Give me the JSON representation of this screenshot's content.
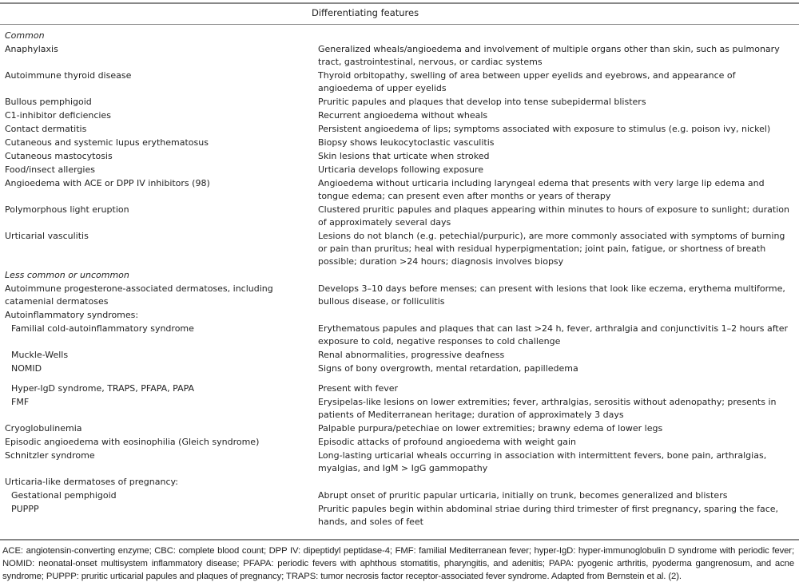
{
  "header": {
    "col2": "Differentiating features"
  },
  "rows": [
    {
      "type": "section",
      "label": "Common",
      "feature": ""
    },
    {
      "type": "item",
      "label": "Anaphylaxis",
      "feature": "Generalized wheals/angioedema and involvement of multiple organs other than skin, such as pulmonary tract, gastrointestinal, nervous, or cardiac systems"
    },
    {
      "type": "item",
      "label": "Autoimmune thyroid disease",
      "feature": "Thyroid orbitopathy, swelling of area between upper eyelids and eyebrows, and appearance of angioedema of upper eyelids"
    },
    {
      "type": "item",
      "label": "Bullous pemphigoid",
      "feature": "Pruritic papules and plaques that develop into tense subepidermal blisters"
    },
    {
      "type": "item",
      "label": "C1-inhibitor deficiencies",
      "feature": "Recurrent angioedema without wheals"
    },
    {
      "type": "item",
      "label": "Contact dermatitis",
      "feature": "Persistent angioedema of lips; symptoms associated with exposure to stimulus (e.g. poison ivy, nickel)"
    },
    {
      "type": "item",
      "label": "Cutaneous and systemic lupus erythematosus",
      "feature": "Biopsy shows leukocytoclastic vasculitis"
    },
    {
      "type": "item",
      "label": "Cutaneous mastocytosis",
      "feature": "Skin lesions that urticate when stroked"
    },
    {
      "type": "item",
      "label": "Food/insect allergies",
      "feature": "Urticaria develops following exposure"
    },
    {
      "type": "item",
      "label": "Angioedema with ACE or DPP IV inhibitors (98)",
      "feature": "Angioedema without urticaria including laryngeal edema that presents with very large lip edema and tongue edema; can present even after months or years of therapy"
    },
    {
      "type": "item",
      "label": "Polymorphous light eruption",
      "feature": "Clustered pruritic papules and plaques appearing within minutes to hours of exposure to sunlight; duration of approximately several days"
    },
    {
      "type": "item",
      "label": "Urticarial vasculitis",
      "feature": "Lesions do not blanch (e.g. petechial/purpuric), are more commonly associated with symptoms of burning or pain than pruritus; heal with residual hyperpigmentation; joint pain, fatigue, or shortness of breath possible; duration >24 hours; diagnosis involves biopsy"
    },
    {
      "type": "section",
      "label": "Less common or uncommon",
      "feature": ""
    },
    {
      "type": "item",
      "label": "Autoimmune progesterone-associated dermatoses, including catamenial dermatoses",
      "feature": "Develops 3–10 days before menses; can present with lesions that look like eczema, erythema multiforme, bullous disease, or folliculitis"
    },
    {
      "type": "item",
      "label": "Autoinflammatory syndromes:",
      "feature": ""
    },
    {
      "type": "sub",
      "label": "Familial cold-autoinflammatory syndrome",
      "feature": "Erythematous papules and plaques that can last >24 h, fever, arthralgia and conjunctivitis 1–2 hours after exposure to cold, negative responses to cold challenge"
    },
    {
      "type": "sub",
      "label": "Muckle-Wells",
      "feature": "Renal abnormalities, progressive deafness"
    },
    {
      "type": "sub gap",
      "label": "NOMID",
      "feature": "Signs of bony overgrowth, mental retardation, papilledema"
    },
    {
      "type": "sub",
      "label": "Hyper-IgD syndrome, TRAPS, PFAPA, PAPA",
      "feature": "Present with fever"
    },
    {
      "type": "sub",
      "label": "FMF",
      "feature": "Erysipelas-like lesions on lower extremities; fever, arthralgias, serositis without adenopathy; presents in patients of Mediterranean heritage; duration of approximately 3 days"
    },
    {
      "type": "item",
      "label": "Cryoglobulinemia",
      "feature": "Palpable purpura/petechiae on lower extremities; brawny edema of lower legs"
    },
    {
      "type": "item",
      "label": "Episodic angioedema with eosinophilia (Gleich syndrome)",
      "feature": "Episodic attacks of profound angioedema with weight gain"
    },
    {
      "type": "item",
      "label": "Schnitzler syndrome",
      "feature": "Long-lasting urticarial wheals occurring in association with intermittent fevers, bone pain, arthralgias, myalgias, and IgM > IgG gammopathy"
    },
    {
      "type": "item",
      "label": "Urticaria-like dermatoses of pregnancy:",
      "feature": ""
    },
    {
      "type": "sub",
      "label": "Gestational pemphigoid",
      "feature": "Abrupt onset of pruritic papular urticaria, initially on trunk, becomes generalized and blisters"
    },
    {
      "type": "sub",
      "label": "PUPPP",
      "feature": "Pruritic papules begin within abdominal striae during third trimester of first pregnancy, sparing the face, hands, and soles of feet"
    }
  ],
  "footnote": "ACE: angiotensin-converting enzyme; CBC: complete blood count; DPP IV: dipeptidyl peptidase-4; FMF: familial Mediterranean fever; hyper-IgD: hyper-immunoglobulin D syndrome with periodic fever; NOMID: neonatal-onset multisystem inflammatory disease; PFAPA: periodic fevers with aphthous stomatitis, pharyngitis, and adenitis; PAPA: pyogenic arthritis, pyoderma gangrenosum, and acne syndrome; PUPPP: pruritic urticarial papules and plaques of pregnancy; TRAPS: tumor necrosis factor receptor-associated fever syndrome. Adapted from Bernstein et al. (2)."
}
